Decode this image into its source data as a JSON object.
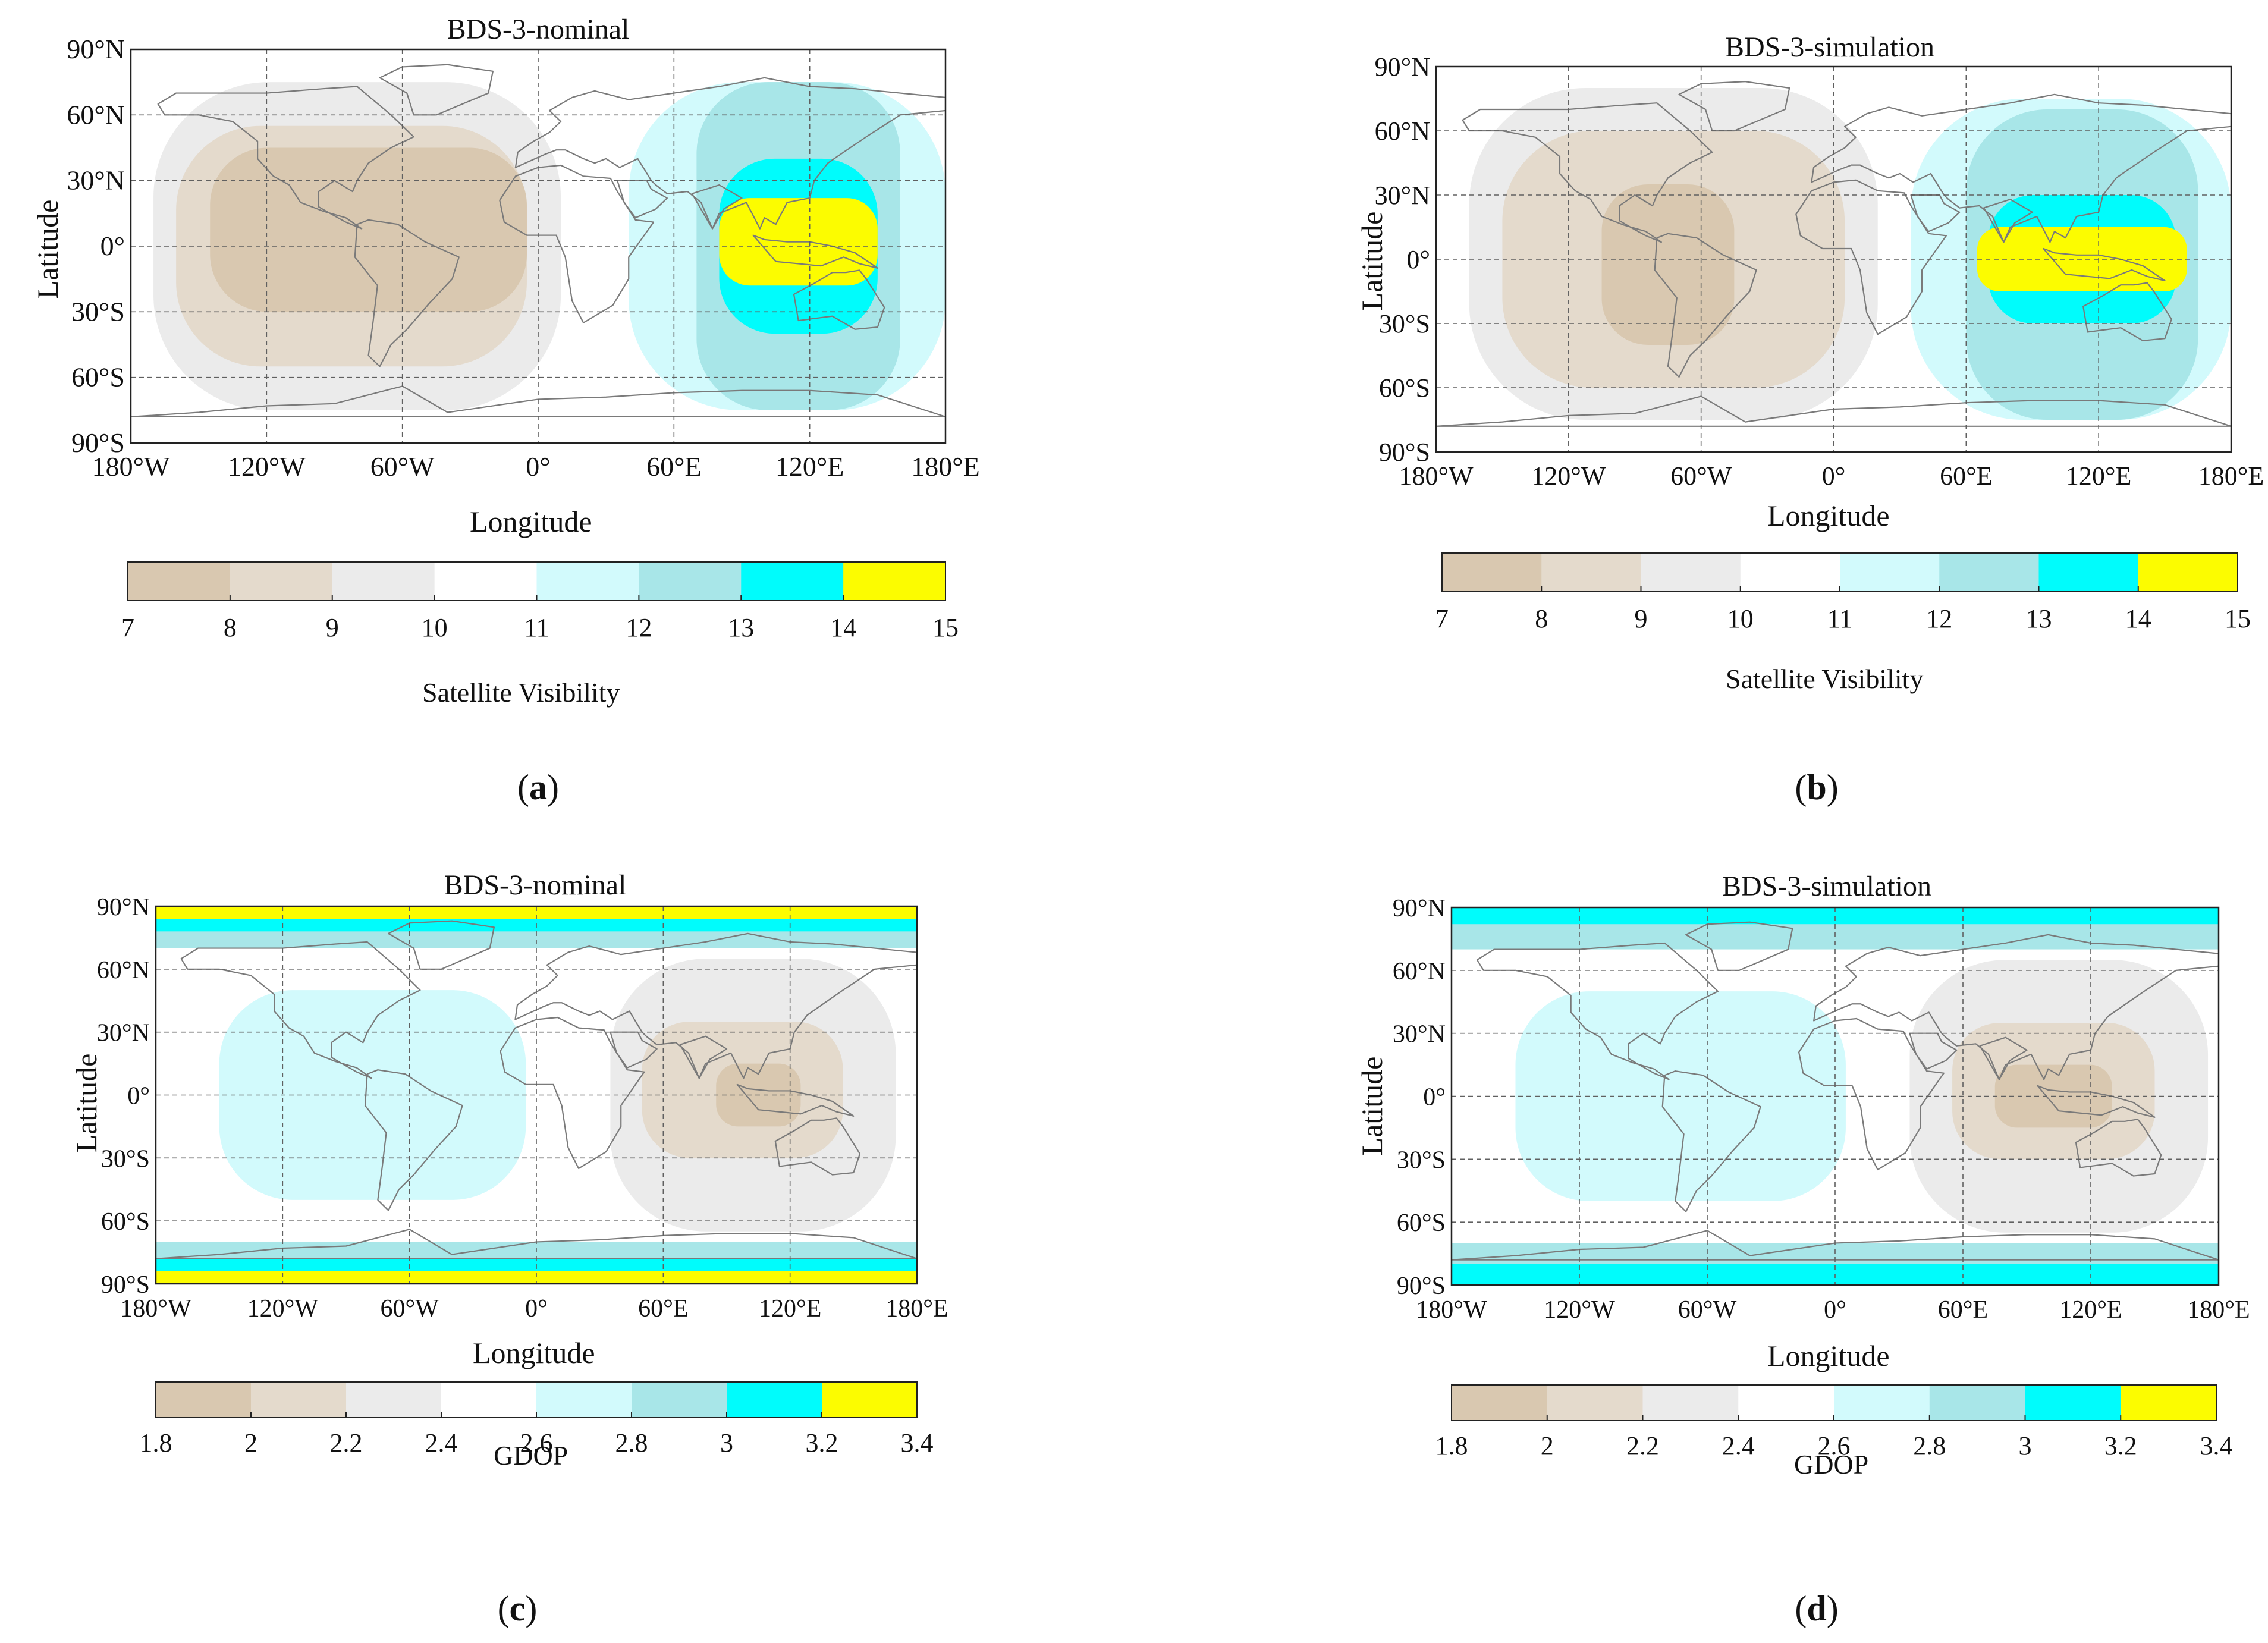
{
  "figure": {
    "captions": [
      {
        "prefix": "(",
        "letter": "a",
        "suffix": ")"
      },
      {
        "prefix": "(",
        "letter": "b",
        "suffix": ")"
      },
      {
        "prefix": "(",
        "letter": "c",
        "suffix": ")"
      },
      {
        "prefix": "(",
        "letter": "d",
        "suffix": ")"
      }
    ]
  },
  "axes": {
    "xlabel": "Longitude",
    "ylabel": "Latitude",
    "lat_ticks": [
      "90°N",
      "60°N",
      "30°N",
      "0°",
      "30°S",
      "60°S",
      "90°S"
    ],
    "lon_ticks": [
      "180°W",
      "120°W",
      "60°W",
      "0°",
      "60°E",
      "120°E",
      "180°E"
    ]
  },
  "colors": {
    "bin1": "#d9c8b0",
    "bin2": "#e4dacc",
    "bin3": "#ebebeb",
    "bin4": "#ffffff",
    "bin5": "#d2fafc",
    "bin6": "#a8e6e8",
    "bin7": "#00fcfc",
    "bin8": "#fcfc00",
    "coast": "#7a7a7a",
    "grid": "#606060"
  },
  "chart_data": [
    {
      "type": "heatmap",
      "title": "BDS-3-nominal",
      "metric": "Satellite Visibility",
      "xlabel": "Longitude",
      "ylabel": "Latitude",
      "xlim": [
        -180,
        180
      ],
      "ylim": [
        -90,
        90
      ],
      "colorbar": {
        "label": "Satellite Visibility",
        "ticks": [
          "7",
          "8",
          "9",
          "10",
          "11",
          "12",
          "13",
          "14",
          "15"
        ]
      },
      "regions": [
        {
          "bin": 3,
          "lon": [
            -170,
            10
          ],
          "lat": [
            -75,
            75
          ]
        },
        {
          "bin": 2,
          "lon": [
            -160,
            -5
          ],
          "lat": [
            -55,
            55
          ]
        },
        {
          "bin": 1,
          "lon": [
            -145,
            -5
          ],
          "lat": [
            -30,
            45
          ]
        },
        {
          "bin": 5,
          "lon": [
            40,
            180
          ],
          "lat": [
            -75,
            75
          ]
        },
        {
          "bin": 6,
          "lon": [
            70,
            160
          ],
          "lat": [
            -75,
            75
          ]
        },
        {
          "bin": 7,
          "lon": [
            80,
            150
          ],
          "lat": [
            -40,
            40
          ]
        },
        {
          "bin": 8,
          "lon": [
            80,
            150
          ],
          "lat": [
            -18,
            22
          ]
        }
      ]
    },
    {
      "type": "heatmap",
      "title": "BDS-3-simulation",
      "metric": "Satellite Visibility",
      "xlabel": "Longitude",
      "ylabel": "Latitude",
      "xlim": [
        -180,
        180
      ],
      "ylim": [
        -90,
        90
      ],
      "colorbar": {
        "label": "Satellite Visibility",
        "ticks": [
          "7",
          "8",
          "9",
          "10",
          "11",
          "12",
          "13",
          "14",
          "15"
        ]
      },
      "regions": [
        {
          "bin": 3,
          "lon": [
            -165,
            20
          ],
          "lat": [
            -75,
            80
          ]
        },
        {
          "bin": 2,
          "lon": [
            -150,
            5
          ],
          "lat": [
            -60,
            60
          ]
        },
        {
          "bin": 1,
          "lon": [
            -105,
            -45
          ],
          "lat": [
            -40,
            35
          ]
        },
        {
          "bin": 5,
          "lon": [
            35,
            180
          ],
          "lat": [
            -75,
            75
          ]
        },
        {
          "bin": 6,
          "lon": [
            60,
            165
          ],
          "lat": [
            -75,
            70
          ]
        },
        {
          "bin": 7,
          "lon": [
            70,
            155
          ],
          "lat": [
            -30,
            30
          ]
        },
        {
          "bin": 8,
          "lon": [
            65,
            160
          ],
          "lat": [
            -15,
            15
          ]
        }
      ]
    },
    {
      "type": "heatmap",
      "title": "BDS-3-nominal",
      "metric": "GDOP",
      "xlabel": "Longitude",
      "ylabel": "Latitude",
      "xlim": [
        -180,
        180
      ],
      "ylim": [
        -90,
        90
      ],
      "colorbar": {
        "label": "GDOP",
        "ticks": [
          "1.8",
          "2",
          "2.2",
          "2.4",
          "2.6",
          "2.8",
          "3",
          "3.2",
          "3.4"
        ]
      },
      "regions": [
        {
          "bin": 5,
          "lon": [
            -150,
            -5
          ],
          "lat": [
            -50,
            50
          ]
        },
        {
          "bin": 3,
          "lon": [
            35,
            170
          ],
          "lat": [
            -65,
            65
          ]
        },
        {
          "bin": 2,
          "lon": [
            50,
            145
          ],
          "lat": [
            -30,
            35
          ]
        },
        {
          "bin": 1,
          "lon": [
            85,
            125
          ],
          "lat": [
            -15,
            15
          ]
        },
        {
          "bin": 6,
          "lon": [
            -180,
            180
          ],
          "lat": [
            70,
            90
          ]
        },
        {
          "bin": 7,
          "lon": [
            -180,
            180
          ],
          "lat": [
            78,
            90
          ]
        },
        {
          "bin": 8,
          "lon": [
            -180,
            180
          ],
          "lat": [
            84,
            90
          ]
        },
        {
          "bin": 6,
          "lon": [
            -180,
            180
          ],
          "lat": [
            -90,
            -70
          ]
        },
        {
          "bin": 7,
          "lon": [
            -180,
            180
          ],
          "lat": [
            -90,
            -78
          ]
        },
        {
          "bin": 8,
          "lon": [
            -180,
            180
          ],
          "lat": [
            -90,
            -84
          ]
        }
      ]
    },
    {
      "type": "heatmap",
      "title": "BDS-3-simulation",
      "metric": "GDOP",
      "xlabel": "Longitude",
      "ylabel": "Latitude",
      "xlim": [
        -180,
        180
      ],
      "ylim": [
        -90,
        90
      ],
      "colorbar": {
        "label": "GDOP",
        "ticks": [
          "1.8",
          "2",
          "2.2",
          "2.4",
          "2.6",
          "2.8",
          "3",
          "3.2",
          "3.4"
        ]
      },
      "regions": [
        {
          "bin": 5,
          "lon": [
            -150,
            5
          ],
          "lat": [
            -50,
            50
          ]
        },
        {
          "bin": 3,
          "lon": [
            35,
            175
          ],
          "lat": [
            -65,
            65
          ]
        },
        {
          "bin": 2,
          "lon": [
            55,
            150
          ],
          "lat": [
            -30,
            35
          ]
        },
        {
          "bin": 1,
          "lon": [
            75,
            130
          ],
          "lat": [
            -15,
            15
          ]
        },
        {
          "bin": 6,
          "lon": [
            -180,
            180
          ],
          "lat": [
            70,
            90
          ]
        },
        {
          "bin": 7,
          "lon": [
            -180,
            180
          ],
          "lat": [
            82,
            90
          ]
        },
        {
          "bin": 6,
          "lon": [
            -180,
            180
          ],
          "lat": [
            -90,
            -70
          ]
        },
        {
          "bin": 7,
          "lon": [
            -180,
            180
          ],
          "lat": [
            -90,
            -80
          ]
        }
      ]
    }
  ]
}
